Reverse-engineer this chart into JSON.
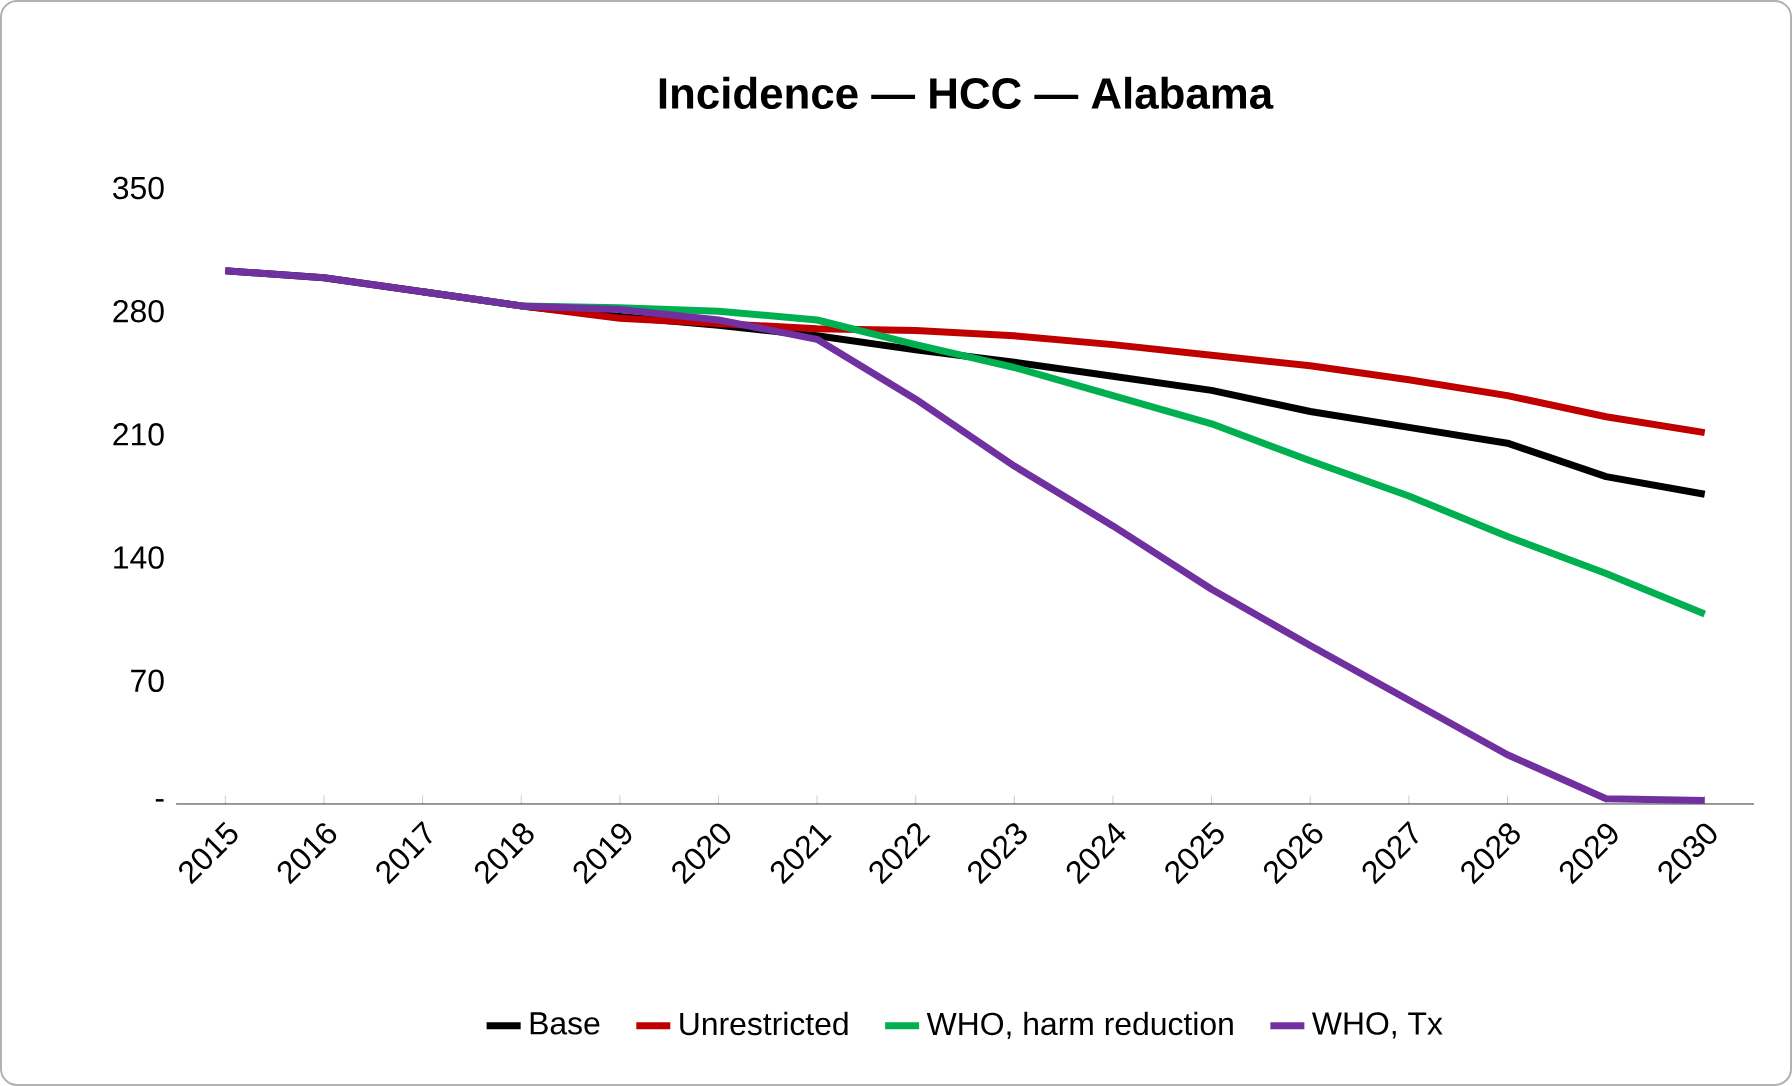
{
  "chart_data": {
    "type": "line",
    "title": "Incidence — HCC — Alabama",
    "categories": [
      "2015",
      "2016",
      "2017",
      "2018",
      "2019",
      "2020",
      "2021",
      "2022",
      "2023",
      "2024",
      "2025",
      "2026",
      "2027",
      "2028",
      "2029",
      "2030"
    ],
    "ylim": [
      0,
      350
    ],
    "yticks": [
      {
        "value": 0,
        "label": "-"
      },
      70,
      140,
      210,
      280,
      350
    ],
    "legend": "bottom",
    "marker": "none",
    "line_style": "solid",
    "series": [
      {
        "name": "Base",
        "color": "#000000",
        "values": [
          303,
          299,
          291,
          283,
          277,
          272,
          266,
          258,
          251,
          243,
          235,
          223,
          214,
          205,
          186,
          176
        ]
      },
      {
        "name": "Unrestricted",
        "color": "#c00000",
        "values": [
          null,
          null,
          291,
          283,
          276,
          273,
          270,
          269,
          266,
          261,
          255,
          249,
          241,
          232,
          220,
          211
        ]
      },
      {
        "name": "WHO, harm reduction",
        "color": "#00b050",
        "values": [
          null,
          null,
          291,
          283,
          282,
          280,
          275,
          261,
          248,
          232,
          216,
          195,
          175,
          152,
          131,
          108
        ]
      },
      {
        "name": "WHO, Tx",
        "color": "#7030a0",
        "values": [
          303,
          299,
          291,
          283,
          281,
          275,
          264,
          230,
          192,
          158,
          122,
          90,
          59,
          28,
          3,
          2
        ]
      }
    ]
  }
}
